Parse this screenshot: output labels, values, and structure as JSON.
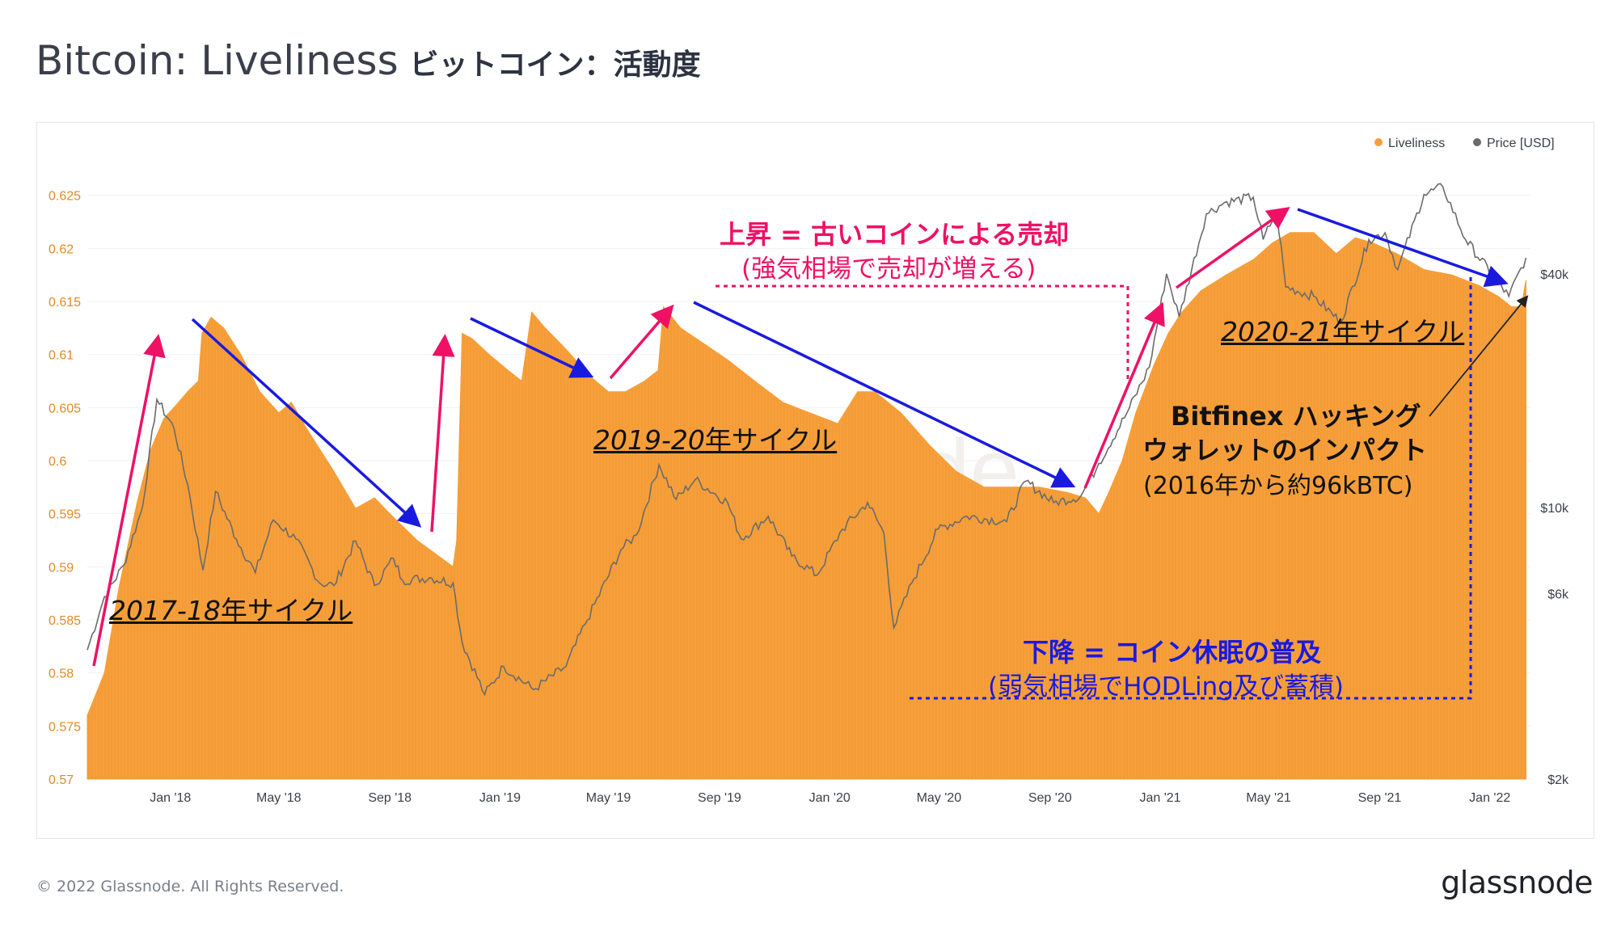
{
  "header": {
    "title": "Bitcoin: Liveliness",
    "title_jp": "ビットコイン：活動度"
  },
  "footer": {
    "copyright": "© 2022 Glassnode. All Rights Reserved.",
    "brand": "glassnode"
  },
  "watermark": "glassnode",
  "colors": {
    "liveliness": "#f7a03b",
    "price": "#6b6b6b",
    "pink_arrow": "#ee1166",
    "blue_arrow": "#1a1adf"
  },
  "annotations": {
    "rise_title": "上昇 = 古いコインによる売却",
    "rise_sub": "(強気相場で売却が増える)",
    "fall_title": "下降 = コイン休眠の普及",
    "fall_sub": "(弱気相場でHODLing及び蓄積)",
    "bitfinex_line1": "Bitfinex ハッキング",
    "bitfinex_line2": "ウォレットのインパクト",
    "bitfinex_line3": "(2016年から約96kBTC)",
    "cycle_2017": "2017-18",
    "cycle_2019": "2019-20",
    "cycle_2020": "2020-21",
    "cycle_suffix": "年サイクル"
  },
  "chart_data": {
    "type": "area",
    "legend_position": "top-right",
    "y_left": {
      "ticks": [
        "0.57",
        "0.575",
        "0.58",
        "0.585",
        "0.59",
        "0.595",
        "0.6",
        "0.605",
        "0.61",
        "0.615",
        "0.62",
        "0.625"
      ],
      "range": [
        0.57,
        0.6265
      ]
    },
    "y_right": {
      "scale": "log",
      "ticks": [
        "$2k",
        "$6k",
        "$10k",
        "$40k"
      ],
      "tick_values": [
        2000,
        6000,
        10000,
        40000
      ],
      "range": [
        2000,
        70000
      ]
    },
    "x_ticks": [
      "Jan '18",
      "May '18",
      "Sep '18",
      "Jan '19",
      "May '19",
      "Sep '19",
      "Jan '20",
      "May '20",
      "Sep '20",
      "Jan '21",
      "May '21",
      "Sep '21",
      "Jan '22"
    ],
    "x_range": [
      "2017-10-01",
      "2022-02-15"
    ],
    "series": [
      {
        "name": "Liveliness",
        "axis": "left",
        "points": [
          [
            "2017-10-01",
            0.576
          ],
          [
            "2017-10-20",
            0.58
          ],
          [
            "2017-11-05",
            0.588
          ],
          [
            "2017-11-25",
            0.596
          ],
          [
            "2017-12-10",
            0.601
          ],
          [
            "2017-12-25",
            0.604
          ],
          [
            "2018-01-05",
            0.605
          ],
          [
            "2018-01-20",
            0.6065
          ],
          [
            "2018-02-01",
            0.6075
          ],
          [
            "2018-02-05",
            0.612
          ],
          [
            "2018-02-15",
            0.6135
          ],
          [
            "2018-03-01",
            0.6125
          ],
          [
            "2018-03-20",
            0.61
          ],
          [
            "2018-04-10",
            0.6065
          ],
          [
            "2018-05-01",
            0.6045
          ],
          [
            "2018-05-15",
            0.6055
          ],
          [
            "2018-06-01",
            0.603
          ],
          [
            "2018-07-01",
            0.599
          ],
          [
            "2018-07-25",
            0.5955
          ],
          [
            "2018-08-15",
            0.5965
          ],
          [
            "2018-09-01",
            0.595
          ],
          [
            "2018-10-01",
            0.5925
          ],
          [
            "2018-10-25",
            0.591
          ],
          [
            "2018-11-10",
            0.59
          ],
          [
            "2018-11-14",
            0.5925
          ],
          [
            "2018-11-20",
            0.612
          ],
          [
            "2018-12-01",
            0.6115
          ],
          [
            "2018-12-20",
            0.61
          ],
          [
            "2019-01-10",
            0.6085
          ],
          [
            "2019-01-25",
            0.6075
          ],
          [
            "2019-02-05",
            0.614
          ],
          [
            "2019-02-20",
            0.6125
          ],
          [
            "2019-03-15",
            0.6105
          ],
          [
            "2019-04-10",
            0.608
          ],
          [
            "2019-05-01",
            0.6065
          ],
          [
            "2019-05-20",
            0.6065
          ],
          [
            "2019-06-10",
            0.6075
          ],
          [
            "2019-06-25",
            0.6085
          ],
          [
            "2019-07-01",
            0.6145
          ],
          [
            "2019-07-20",
            0.6125
          ],
          [
            "2019-08-15",
            0.611
          ],
          [
            "2019-09-10",
            0.6095
          ],
          [
            "2019-10-10",
            0.6075
          ],
          [
            "2019-11-10",
            0.6055
          ],
          [
            "2019-12-10",
            0.6045
          ],
          [
            "2020-01-10",
            0.6035
          ],
          [
            "2020-02-01",
            0.6065
          ],
          [
            "2020-02-20",
            0.6065
          ],
          [
            "2020-03-20",
            0.6045
          ],
          [
            "2020-04-20",
            0.6015
          ],
          [
            "2020-05-20",
            0.599
          ],
          [
            "2020-06-20",
            0.5975
          ],
          [
            "2020-07-20",
            0.5975
          ],
          [
            "2020-08-20",
            0.5975
          ],
          [
            "2020-09-20",
            0.597
          ],
          [
            "2020-10-10",
            0.5965
          ],
          [
            "2020-10-25",
            0.595
          ],
          [
            "2020-11-05",
            0.597
          ],
          [
            "2020-11-20",
            0.6
          ],
          [
            "2020-12-05",
            0.6045
          ],
          [
            "2020-12-25",
            0.609
          ],
          [
            "2021-01-10",
            0.612
          ],
          [
            "2021-01-25",
            0.614
          ],
          [
            "2021-02-15",
            0.616
          ],
          [
            "2021-03-15",
            0.6175
          ],
          [
            "2021-04-15",
            0.619
          ],
          [
            "2021-05-05",
            0.6205
          ],
          [
            "2021-05-25",
            0.6215
          ],
          [
            "2021-06-20",
            0.6215
          ],
          [
            "2021-07-15",
            0.6195
          ],
          [
            "2021-08-05",
            0.621
          ],
          [
            "2021-08-25",
            0.6205
          ],
          [
            "2021-09-20",
            0.6195
          ],
          [
            "2021-10-20",
            0.618
          ],
          [
            "2021-11-20",
            0.6175
          ],
          [
            "2021-12-20",
            0.6165
          ],
          [
            "2022-01-10",
            0.6155
          ],
          [
            "2022-01-25",
            0.6145
          ],
          [
            "2022-02-05",
            0.6145
          ],
          [
            "2022-02-10",
            0.617
          ]
        ]
      },
      {
        "name": "Price [USD]",
        "axis": "right",
        "points": [
          [
            "2017-10-01",
            4300
          ],
          [
            "2017-10-20",
            5900
          ],
          [
            "2017-11-10",
            7100
          ],
          [
            "2017-12-01",
            10000
          ],
          [
            "2017-12-17",
            19000
          ],
          [
            "2018-01-05",
            16000
          ],
          [
            "2018-01-20",
            11500
          ],
          [
            "2018-02-06",
            6900
          ],
          [
            "2018-02-20",
            11000
          ],
          [
            "2018-03-15",
            8300
          ],
          [
            "2018-04-05",
            6800
          ],
          [
            "2018-04-25",
            9300
          ],
          [
            "2018-05-20",
            8300
          ],
          [
            "2018-06-15",
            6400
          ],
          [
            "2018-07-01",
            6300
          ],
          [
            "2018-07-25",
            8200
          ],
          [
            "2018-08-15",
            6300
          ],
          [
            "2018-09-05",
            7400
          ],
          [
            "2018-09-15",
            6500
          ],
          [
            "2018-10-15",
            6600
          ],
          [
            "2018-11-10",
            6400
          ],
          [
            "2018-11-20",
            4500
          ],
          [
            "2018-12-15",
            3300
          ],
          [
            "2019-01-05",
            3900
          ],
          [
            "2019-02-07",
            3400
          ],
          [
            "2019-03-15",
            3900
          ],
          [
            "2019-04-05",
            5000
          ],
          [
            "2019-05-15",
            7800
          ],
          [
            "2019-06-01",
            8500
          ],
          [
            "2019-06-26",
            12900
          ],
          [
            "2019-07-15",
            10500
          ],
          [
            "2019-08-05",
            11800
          ],
          [
            "2019-09-10",
            10300
          ],
          [
            "2019-09-25",
            8300
          ],
          [
            "2019-10-25",
            9500
          ],
          [
            "2019-11-20",
            7500
          ],
          [
            "2019-12-18",
            6700
          ],
          [
            "2020-01-15",
            8800
          ],
          [
            "2020-02-12",
            10300
          ],
          [
            "2020-03-01",
            8600
          ],
          [
            "2020-03-12",
            4900
          ],
          [
            "2020-04-01",
            6400
          ],
          [
            "2020-04-30",
            8800
          ],
          [
            "2020-06-01",
            9500
          ],
          [
            "2020-07-15",
            9200
          ],
          [
            "2020-08-05",
            11700
          ],
          [
            "2020-09-05",
            10300
          ],
          [
            "2020-10-05",
            10700
          ],
          [
            "2020-10-25",
            13000
          ],
          [
            "2020-11-25",
            17500
          ],
          [
            "2020-12-20",
            23000
          ],
          [
            "2021-01-08",
            40000
          ],
          [
            "2021-01-22",
            31000
          ],
          [
            "2021-02-21",
            57000
          ],
          [
            "2021-03-13",
            61000
          ],
          [
            "2021-04-14",
            63000
          ],
          [
            "2021-04-25",
            49000
          ],
          [
            "2021-05-10",
            58000
          ],
          [
            "2021-05-20",
            37000
          ],
          [
            "2021-06-20",
            35000
          ],
          [
            "2021-07-20",
            30000
          ],
          [
            "2021-08-20",
            49000
          ],
          [
            "2021-09-07",
            51000
          ],
          [
            "2021-09-21",
            41000
          ],
          [
            "2021-10-20",
            64000
          ],
          [
            "2021-11-10",
            67000
          ],
          [
            "2021-12-05",
            49000
          ],
          [
            "2022-01-22",
            35000
          ],
          [
            "2022-02-10",
            44000
          ]
        ]
      }
    ]
  }
}
